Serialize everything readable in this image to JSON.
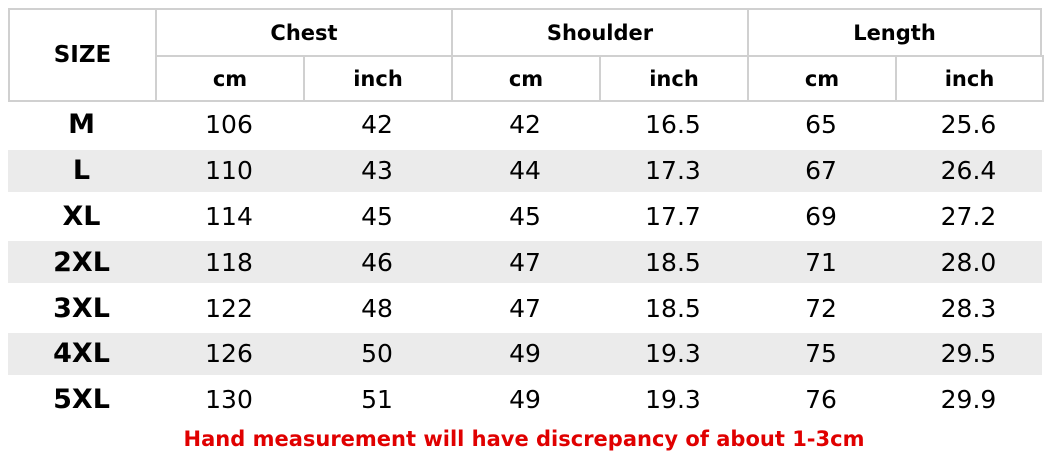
{
  "table": {
    "header": {
      "size": "SIZE",
      "groups": [
        "Chest",
        "Shoulder",
        "Length"
      ],
      "units": [
        "cm",
        "inch",
        "cm",
        "inch",
        "cm",
        "inch"
      ]
    },
    "rows": [
      [
        "M",
        "106",
        "42",
        "42",
        "16.5",
        "65",
        "25.6"
      ],
      [
        "L",
        "110",
        "43",
        "44",
        "17.3",
        "67",
        "26.4"
      ],
      [
        "XL",
        "114",
        "45",
        "45",
        "17.7",
        "69",
        "27.2"
      ],
      [
        "2XL",
        "118",
        "46",
        "47",
        "18.5",
        "71",
        "28.0"
      ],
      [
        "3XL",
        "122",
        "48",
        "47",
        "18.5",
        "72",
        "28.3"
      ],
      [
        "4XL",
        "126",
        "50",
        "49",
        "19.3",
        "75",
        "29.5"
      ],
      [
        "5XL",
        "130",
        "51",
        "49",
        "19.3",
        "76",
        "29.9"
      ]
    ]
  },
  "note": "Hand measurement will have discrepancy of about 1-3cm"
}
